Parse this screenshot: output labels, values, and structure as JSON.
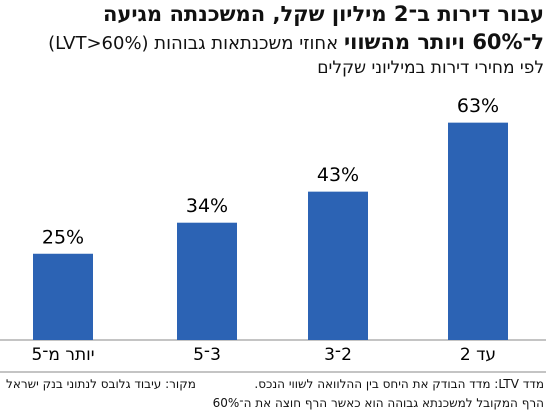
{
  "chart_data": {
    "type": "bar",
    "title": [
      "עבור דירות ב־2 מיליון שקל, המשכנתה מגיעה",
      "ל־60% ויותר מהשווי"
    ],
    "subtitle": "אחוזי משכנתאות גבוהות (LVT>60%)",
    "caption": "לפי מחירי דירות במיליוני שקלים",
    "categories": [
      "יותר מ־5",
      "3־5",
      "2־3",
      "עד 2"
    ],
    "values": [
      25,
      34,
      43,
      63
    ],
    "value_labels": [
      "25%",
      "34%",
      "43%",
      "63%"
    ],
    "color": "#2c63b4",
    "source": "מקור: עיבוד גלובס לנתוני בנק ישראל",
    "notes": [
      "מדד LTV: מדד הבודק את היחס בין ההלוואה לשווי הנכס.",
      "הרף המקובל למשכנתא גבוהה הוא כאשר הרף חוצה את ה־60%"
    ]
  }
}
